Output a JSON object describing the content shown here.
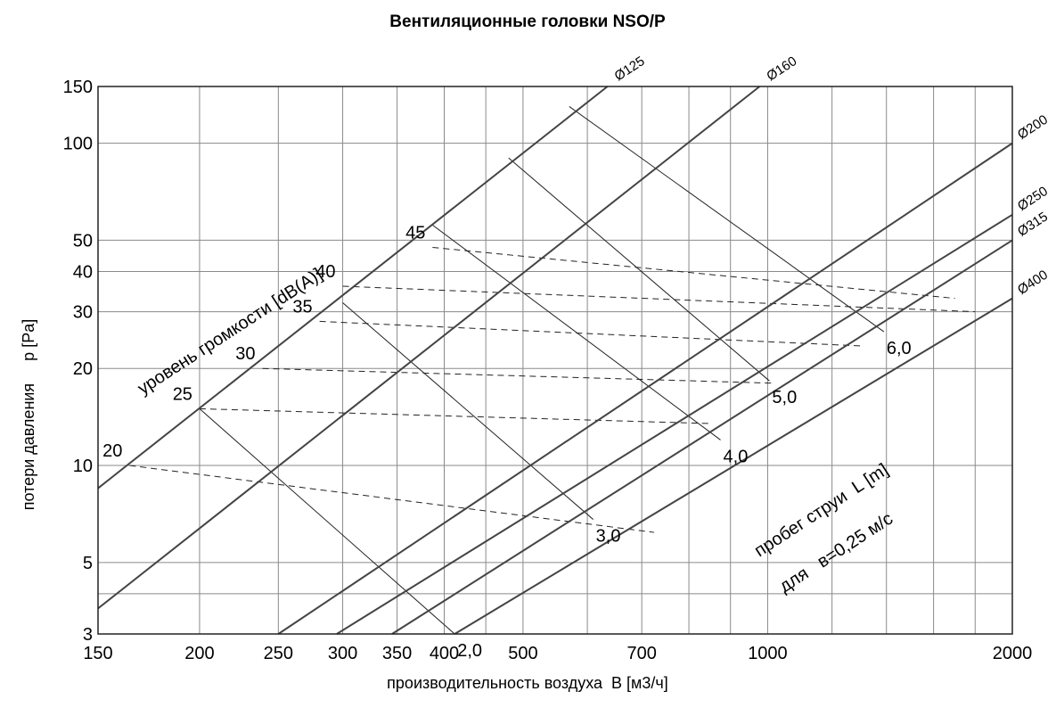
{
  "chart_data": {
    "type": "line",
    "title": "Вентиляционные головки NSO/P",
    "xlabel": "производительность воздуха  В [м3/ч]",
    "ylabel": "потери давления     p [Pa]",
    "x_scale": "log",
    "y_scale": "log",
    "xlim": [
      150,
      2000
    ],
    "ylim": [
      3,
      150
    ],
    "grid": true,
    "x_gridlines": [
      150,
      200,
      250,
      300,
      350,
      400,
      450,
      500,
      600,
      700,
      800,
      900,
      1000,
      1200,
      1400,
      1600,
      1800,
      2000
    ],
    "y_gridlines": [
      3,
      4,
      5,
      10,
      20,
      30,
      40,
      50,
      100,
      150
    ],
    "x_ticks": [
      {
        "v": 150,
        "label": "150"
      },
      {
        "v": 200,
        "label": "200"
      },
      {
        "v": 250,
        "label": "250"
      },
      {
        "v": 300,
        "label": "300"
      },
      {
        "v": 350,
        "label": "350"
      },
      {
        "v": 400,
        "label": "400"
      },
      {
        "v": 500,
        "label": "500"
      },
      {
        "v": 700,
        "label": "700"
      },
      {
        "v": 1000,
        "label": "1000"
      },
      {
        "v": 2000,
        "label": "2000"
      }
    ],
    "y_ticks": [
      {
        "v": 3,
        "label": "3"
      },
      {
        "v": 5,
        "label": "5"
      },
      {
        "v": 10,
        "label": "10"
      },
      {
        "v": 20,
        "label": "20"
      },
      {
        "v": 30,
        "label": "30"
      },
      {
        "v": 40,
        "label": "40"
      },
      {
        "v": 50,
        "label": "50"
      },
      {
        "v": 100,
        "label": "100"
      },
      {
        "v": 150,
        "label": "150"
      }
    ],
    "series": [
      {
        "name": "Ø125",
        "x": [
          150,
          1000
        ],
        "y": [
          8.5,
          370
        ]
      },
      {
        "name": "Ø160",
        "x": [
          150,
          1000
        ],
        "y": [
          3.6,
          157
        ]
      },
      {
        "name": "Ø200",
        "x": [
          250,
          2000
        ],
        "y": [
          3,
          100
        ]
      },
      {
        "name": "Ø250",
        "x": [
          295,
          2000
        ],
        "y": [
          3,
          60
        ]
      },
      {
        "name": "Ø315",
        "x": [
          345,
          2000
        ],
        "y": [
          3,
          50
        ]
      },
      {
        "name": "Ø400",
        "x": [
          412,
          2000
        ],
        "y": [
          3,
          33
        ]
      }
    ],
    "noise_level_axis_label": "уровень громкости [dB(A)]",
    "noise_level_lines": [
      {
        "label": "20",
        "x": [
          164,
          725
        ],
        "y": [
          10,
          6.2
        ]
      },
      {
        "label": "25",
        "x": [
          200,
          845
        ],
        "y": [
          15,
          13.5
        ]
      },
      {
        "label": "30",
        "x": [
          239,
          1020
        ],
        "y": [
          20,
          18
        ]
      },
      {
        "label": "35",
        "x": [
          281,
          1300
        ],
        "y": [
          28,
          23.5
        ]
      },
      {
        "label": "40",
        "x": [
          300,
          1800
        ],
        "y": [
          36,
          30
        ]
      },
      {
        "label": "45",
        "x": [
          387,
          1700
        ],
        "y": [
          47.5,
          33
        ]
      }
    ],
    "throw_axis_label": "пробег струи  L [m]",
    "throw_condition_label": "для   в=0,25 м/с",
    "throw_lines": [
      {
        "label": "2,0",
        "x": [
          200,
          412
        ],
        "y": [
          15,
          3
        ]
      },
      {
        "label": "3,0",
        "x": [
          300,
          610
        ],
        "y": [
          32,
          6.8
        ]
      },
      {
        "label": "4,0",
        "x": [
          386,
          875
        ],
        "y": [
          56,
          12
        ]
      },
      {
        "label": "5,0",
        "x": [
          480,
          1005
        ],
        "y": [
          90,
          18.3
        ]
      },
      {
        "label": "6,0",
        "x": [
          570,
          1390
        ],
        "y": [
          130,
          26
        ]
      }
    ]
  }
}
